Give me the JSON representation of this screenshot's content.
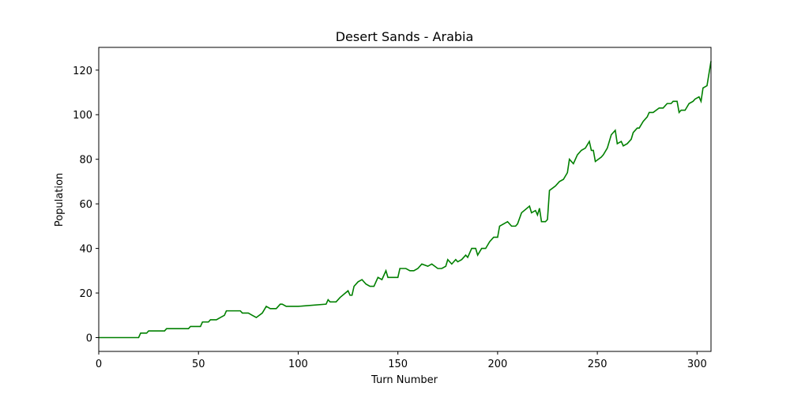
{
  "chart_data": {
    "type": "line",
    "title": "Desert Sands - Arabia",
    "x_label": "Turn Number",
    "y_label": "Population",
    "x": [
      0,
      20,
      21,
      24,
      25,
      33,
      34,
      45,
      46,
      51,
      52,
      55,
      56,
      59,
      61,
      63,
      64,
      71,
      72,
      75,
      77,
      79,
      82,
      84,
      86,
      89,
      91,
      92,
      94,
      100,
      114,
      115,
      116,
      119,
      121,
      125,
      126,
      127,
      128,
      130,
      132,
      134,
      136,
      138,
      140,
      142,
      144,
      145,
      146,
      150,
      151,
      154,
      156,
      158,
      160,
      162,
      165,
      167,
      170,
      172,
      174,
      175,
      177,
      179,
      180,
      182,
      184,
      185,
      187,
      189,
      190,
      192,
      194,
      196,
      198,
      200,
      201,
      205,
      207,
      209,
      210,
      212,
      216,
      217,
      219,
      220,
      221,
      222,
      224,
      225,
      226,
      229,
      231,
      233,
      235,
      236,
      238,
      240,
      242,
      244,
      246,
      247,
      248,
      249,
      252,
      253,
      255,
      257,
      259,
      260,
      262,
      263,
      265,
      267,
      268,
      270,
      271,
      273,
      275,
      276,
      278,
      281,
      283,
      285,
      287,
      288,
      290,
      291,
      292,
      294,
      296,
      298,
      299,
      301,
      302,
      303,
      305,
      307
    ],
    "series": [
      {
        "name": "Population",
        "color": "green",
        "values": [
          0,
          0,
          2,
          2,
          3,
          3,
          4,
          4,
          5,
          5,
          7,
          7,
          8,
          8,
          9,
          10,
          12,
          12,
          11,
          11,
          10,
          9,
          11,
          14,
          13,
          13,
          15,
          15,
          14,
          14,
          15,
          17,
          16,
          16,
          18,
          21,
          19,
          19,
          23,
          25,
          26,
          24,
          23,
          23,
          27,
          26,
          30,
          27,
          27,
          27,
          31,
          31,
          30,
          30,
          31,
          33,
          32,
          33,
          31,
          31,
          32,
          35,
          33,
          35,
          34,
          35,
          37,
          36,
          40,
          40,
          37,
          40,
          40,
          43,
          45,
          45,
          50,
          52,
          50,
          50,
          51,
          56,
          59,
          56,
          57,
          55,
          58,
          52,
          52,
          53,
          66,
          68,
          70,
          71,
          74,
          80,
          78,
          82,
          84,
          85,
          88,
          84,
          84,
          79,
          81,
          82,
          85,
          91,
          93,
          87,
          88,
          86,
          87,
          89,
          92,
          94,
          94,
          97,
          99,
          101,
          101,
          103,
          103,
          105,
          105,
          106,
          106,
          101,
          102,
          102,
          105,
          106,
          107,
          108,
          106,
          112,
          113,
          124
        ]
      }
    ],
    "xlim": [
      0,
      307
    ],
    "ylim": [
      -6.2,
      130.2
    ],
    "xticks": [
      0,
      50,
      100,
      150,
      200,
      250,
      300
    ],
    "yticks": [
      0,
      20,
      40,
      60,
      80,
      100,
      120
    ]
  }
}
